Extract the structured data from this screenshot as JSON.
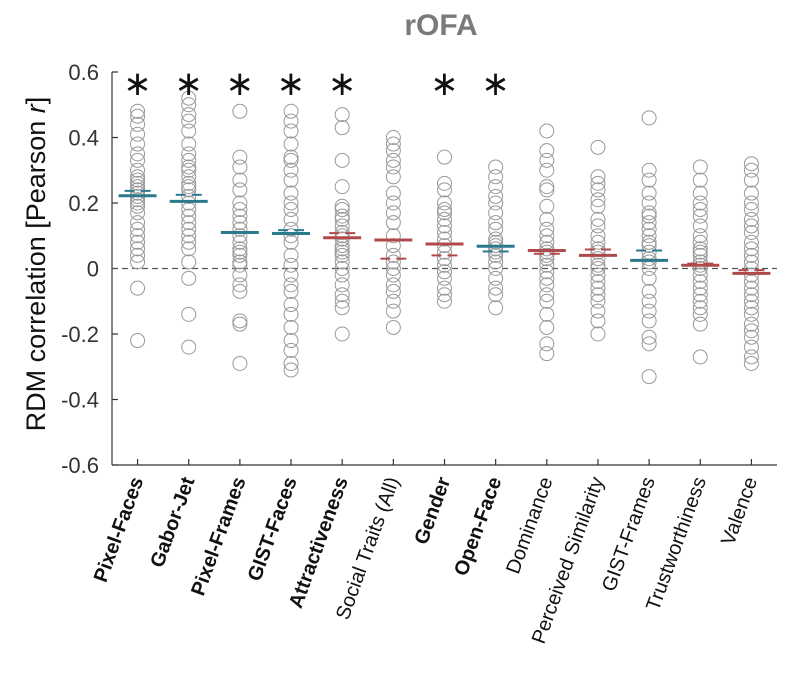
{
  "chart_data": {
    "type": "scatter",
    "title": "rOFA",
    "ylabel_prefix": "RDM correlation [Pearson ",
    "ylabel_var": "r",
    "ylabel_suffix": "]",
    "ylim": [
      -0.6,
      0.6
    ],
    "yticks": [
      {
        "value": 0.6,
        "label": "0.6"
      },
      {
        "value": 0.4,
        "label": "0.4"
      },
      {
        "value": 0.2,
        "label": "0.2"
      },
      {
        "value": 0,
        "label": "0"
      },
      {
        "value": -0.2,
        "label": "-0.2"
      },
      {
        "value": -0.4,
        "label": "-0.4"
      },
      {
        "value": -0.6,
        "label": "-0.6"
      }
    ],
    "reference_line": 0,
    "significance_marker": "∗",
    "colors": {
      "teal": "#2b7a8c",
      "red": "#b04a4a",
      "points": "#999999",
      "axis": "#333333"
    },
    "categories": [
      {
        "label": "Pixel-Faces",
        "bold": true,
        "significant": true,
        "color": "teal",
        "mean": 0.222,
        "noise": 0.237,
        "points": [
          0.48,
          0.465,
          0.44,
          0.41,
          0.38,
          0.35,
          0.33,
          0.3,
          0.28,
          0.27,
          0.26,
          0.25,
          0.24,
          0.23,
          0.22,
          0.21,
          0.2,
          0.19,
          0.17,
          0.14,
          0.12,
          0.1,
          0.08,
          0.06,
          0.04,
          0.02,
          -0.06,
          -0.22
        ]
      },
      {
        "label": "Gabor-Jet",
        "bold": true,
        "significant": true,
        "color": "teal",
        "mean": 0.205,
        "noise": 0.225,
        "points": [
          0.52,
          0.5,
          0.47,
          0.45,
          0.42,
          0.38,
          0.35,
          0.33,
          0.31,
          0.3,
          0.28,
          0.26,
          0.25,
          0.24,
          0.22,
          0.2,
          0.18,
          0.16,
          0.14,
          0.12,
          0.1,
          0.08,
          0.06,
          0.02,
          -0.03,
          -0.14,
          -0.24
        ]
      },
      {
        "label": "Pixel-Frames",
        "bold": true,
        "significant": true,
        "color": "teal",
        "mean": 0.11,
        "noise": 0.11,
        "points": [
          0.48,
          0.34,
          0.31,
          0.27,
          0.24,
          0.2,
          0.18,
          0.16,
          0.14,
          0.12,
          0.1,
          0.08,
          0.06,
          0.05,
          0.04,
          0.02,
          0.01,
          -0.02,
          -0.05,
          -0.07,
          -0.16,
          -0.17,
          -0.29
        ]
      },
      {
        "label": "GIST-Faces",
        "bold": true,
        "significant": true,
        "color": "teal",
        "mean": 0.107,
        "noise": 0.117,
        "points": [
          0.48,
          0.45,
          0.42,
          0.38,
          0.34,
          0.33,
          0.3,
          0.27,
          0.23,
          0.2,
          0.18,
          0.15,
          0.12,
          0.1,
          0.08,
          0.04,
          0.01,
          -0.02,
          -0.05,
          -0.07,
          -0.11,
          -0.14,
          -0.18,
          -0.22,
          -0.25,
          -0.29,
          -0.31
        ]
      },
      {
        "label": "Attractiveness",
        "bold": true,
        "significant": true,
        "color": "red",
        "mean": 0.094,
        "noise": 0.108,
        "points": [
          0.47,
          0.43,
          0.33,
          0.25,
          0.19,
          0.18,
          0.16,
          0.15,
          0.13,
          0.11,
          0.1,
          0.09,
          0.07,
          0.06,
          0.05,
          0.04,
          0.02,
          0.0,
          -0.02,
          -0.05,
          -0.08,
          -0.1,
          -0.12,
          -0.2
        ]
      },
      {
        "label": "Social Traits (All)",
        "bold": false,
        "significant": false,
        "color": "red",
        "mean": 0.087,
        "noise": 0.03,
        "points": [
          0.4,
          0.38,
          0.36,
          0.33,
          0.31,
          0.28,
          0.23,
          0.2,
          0.17,
          0.14,
          0.1,
          0.07,
          0.04,
          0.02,
          0.0,
          -0.02,
          -0.05,
          -0.07,
          -0.1,
          -0.13,
          -0.18
        ]
      },
      {
        "label": "Gender",
        "bold": true,
        "significant": true,
        "color": "red",
        "mean": 0.075,
        "noise": 0.04,
        "points": [
          0.34,
          0.26,
          0.24,
          0.2,
          0.18,
          0.17,
          0.15,
          0.13,
          0.11,
          0.09,
          0.07,
          0.05,
          0.03,
          0.01,
          -0.01,
          -0.03,
          -0.06,
          -0.08,
          -0.1
        ]
      },
      {
        "label": "Open-Face",
        "bold": true,
        "significant": true,
        "color": "teal",
        "mean": 0.068,
        "noise": 0.052,
        "points": [
          0.31,
          0.28,
          0.25,
          0.22,
          0.2,
          0.17,
          0.14,
          0.12,
          0.09,
          0.08,
          0.07,
          0.06,
          0.05,
          0.04,
          0.02,
          0.0,
          -0.03,
          -0.06,
          -0.08,
          -0.12
        ]
      },
      {
        "label": "Dominance",
        "bold": false,
        "significant": false,
        "color": "red",
        "mean": 0.055,
        "noise": 0.045,
        "points": [
          0.42,
          0.36,
          0.33,
          0.3,
          0.25,
          0.24,
          0.19,
          0.15,
          0.12,
          0.1,
          0.08,
          0.06,
          0.05,
          0.04,
          0.03,
          0.01,
          -0.01,
          -0.03,
          -0.05,
          -0.08,
          -0.1,
          -0.14,
          -0.18,
          -0.23,
          -0.26
        ]
      },
      {
        "label": "Perceived Similarity",
        "bold": false,
        "significant": false,
        "color": "red",
        "mean": 0.04,
        "noise": 0.058,
        "points": [
          0.37,
          0.28,
          0.26,
          0.24,
          0.21,
          0.19,
          0.15,
          0.13,
          0.1,
          0.08,
          0.06,
          0.05,
          0.03,
          0.01,
          0.0,
          -0.02,
          -0.04,
          -0.06,
          -0.08,
          -0.1,
          -0.13,
          -0.16,
          -0.2
        ]
      },
      {
        "label": "GIST-Frames",
        "bold": false,
        "significant": false,
        "color": "teal",
        "mean": 0.025,
        "noise": 0.055,
        "points": [
          0.46,
          0.3,
          0.27,
          0.23,
          0.2,
          0.17,
          0.16,
          0.14,
          0.12,
          0.1,
          0.08,
          0.07,
          0.05,
          0.03,
          0.02,
          0.0,
          -0.03,
          -0.07,
          -0.1,
          -0.13,
          -0.16,
          -0.21,
          -0.23,
          -0.33
        ]
      },
      {
        "label": "Trustworthiness",
        "bold": false,
        "significant": false,
        "color": "red",
        "mean": 0.01,
        "noise": 0.015,
        "points": [
          0.31,
          0.27,
          0.23,
          0.2,
          0.18,
          0.16,
          0.13,
          0.1,
          0.08,
          0.06,
          0.05,
          0.04,
          0.02,
          0.01,
          0.0,
          -0.02,
          -0.04,
          -0.06,
          -0.08,
          -0.1,
          -0.12,
          -0.14,
          -0.17,
          -0.27
        ]
      },
      {
        "label": "Valence",
        "bold": false,
        "significant": false,
        "color": "red",
        "mean": -0.015,
        "noise": -0.005,
        "points": [
          0.32,
          0.3,
          0.27,
          0.23,
          0.2,
          0.18,
          0.15,
          0.13,
          0.11,
          0.08,
          0.06,
          0.04,
          0.02,
          0.0,
          -0.02,
          -0.04,
          -0.06,
          -0.08,
          -0.1,
          -0.12,
          -0.14,
          -0.17,
          -0.19,
          -0.21,
          -0.24,
          -0.27,
          -0.29
        ]
      }
    ]
  }
}
